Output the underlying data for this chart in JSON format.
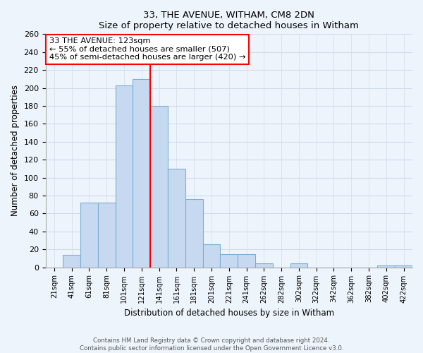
{
  "title": "33, THE AVENUE, WITHAM, CM8 2DN",
  "subtitle": "Size of property relative to detached houses in Witham",
  "xlabel": "Distribution of detached houses by size in Witham",
  "ylabel": "Number of detached properties",
  "bar_labels": [
    "21sqm",
    "41sqm",
    "61sqm",
    "81sqm",
    "101sqm",
    "121sqm",
    "141sqm",
    "161sqm",
    "181sqm",
    "201sqm",
    "221sqm",
    "241sqm",
    "262sqm",
    "282sqm",
    "302sqm",
    "322sqm",
    "342sqm",
    "362sqm",
    "382sqm",
    "402sqm",
    "422sqm"
  ],
  "bar_values": [
    0,
    14,
    72,
    72,
    203,
    210,
    180,
    110,
    76,
    26,
    15,
    15,
    4,
    0,
    4,
    0,
    0,
    0,
    0,
    2,
    2
  ],
  "bar_color": "#c6d9f0",
  "bar_edge_color": "#7bafd4",
  "vline_x": 5.5,
  "vline_color": "red",
  "annotation_text": "33 THE AVENUE: 123sqm\n← 55% of detached houses are smaller (507)\n45% of semi-detached houses are larger (420) →",
  "annotation_box_color": "white",
  "annotation_box_edge": "red",
  "ylim": [
    0,
    260
  ],
  "yticks": [
    0,
    20,
    40,
    60,
    80,
    100,
    120,
    140,
    160,
    180,
    200,
    220,
    240,
    260
  ],
  "footer_line1": "Contains HM Land Registry data © Crown copyright and database right 2024.",
  "footer_line2": "Contains public sector information licensed under the Open Government Licence v3.0.",
  "bg_color": "#eef4fc"
}
